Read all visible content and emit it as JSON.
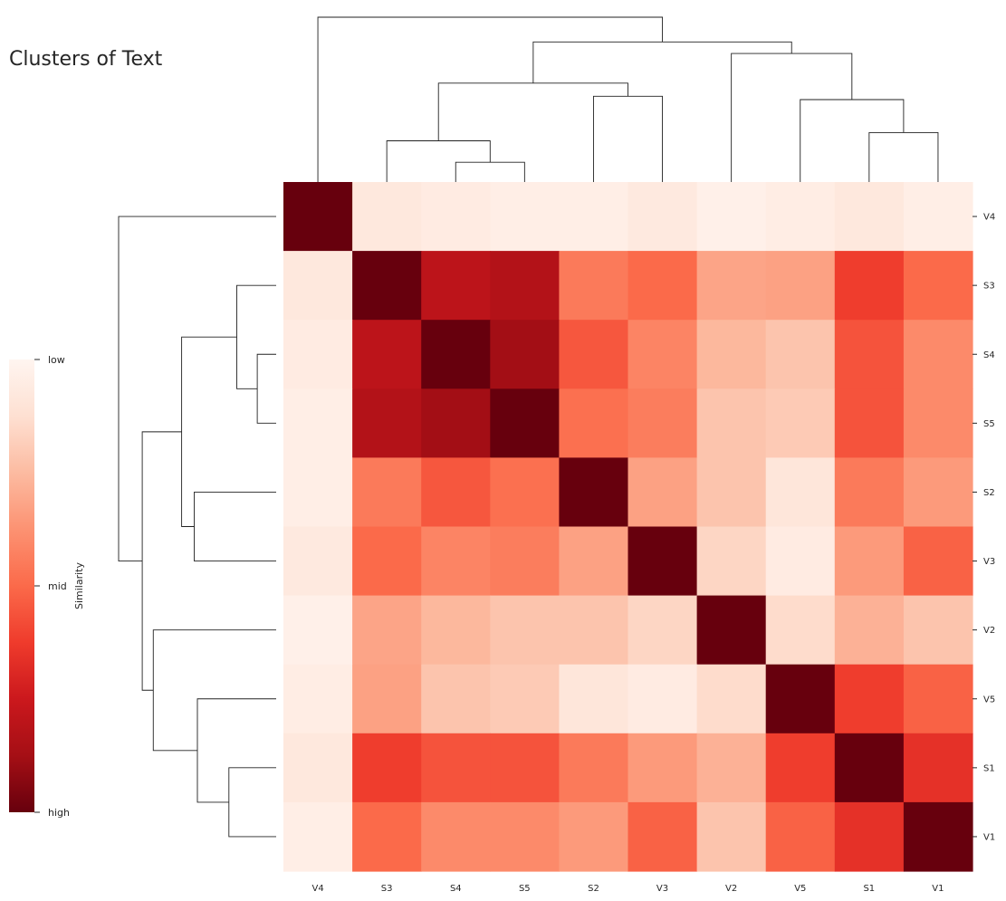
{
  "chart_data": {
    "type": "heatmap",
    "title": "Clusters of Text",
    "labels": [
      "V4",
      "S3",
      "S4",
      "S5",
      "S2",
      "V3",
      "V2",
      "V5",
      "S1",
      "V1"
    ],
    "matrix": [
      [
        1.0,
        0.08,
        0.06,
        0.04,
        0.04,
        0.07,
        0.03,
        0.05,
        0.08,
        0.04
      ],
      [
        0.08,
        1.0,
        0.8,
        0.83,
        0.45,
        0.5,
        0.32,
        0.33,
        0.62,
        0.5
      ],
      [
        0.06,
        0.8,
        1.0,
        0.88,
        0.55,
        0.42,
        0.26,
        0.22,
        0.56,
        0.4
      ],
      [
        0.04,
        0.83,
        0.88,
        1.0,
        0.48,
        0.44,
        0.22,
        0.2,
        0.56,
        0.4
      ],
      [
        0.04,
        0.45,
        0.55,
        0.48,
        1.0,
        0.33,
        0.22,
        0.09,
        0.45,
        0.35
      ],
      [
        0.07,
        0.5,
        0.42,
        0.44,
        0.33,
        1.0,
        0.16,
        0.06,
        0.35,
        0.52
      ],
      [
        0.03,
        0.32,
        0.26,
        0.22,
        0.22,
        0.16,
        1.0,
        0.14,
        0.28,
        0.22
      ],
      [
        0.05,
        0.33,
        0.22,
        0.2,
        0.09,
        0.06,
        0.14,
        1.0,
        0.62,
        0.52
      ],
      [
        0.08,
        0.62,
        0.56,
        0.56,
        0.45,
        0.35,
        0.28,
        0.62,
        1.0,
        0.66
      ],
      [
        0.04,
        0.5,
        0.4,
        0.4,
        0.35,
        0.52,
        0.22,
        0.52,
        0.66,
        1.0
      ]
    ],
    "dendrogram": {
      "merges": [
        {
          "a": 2,
          "b": 3,
          "h": 0.12
        },
        {
          "a": 1,
          "b": "m0",
          "h": 0.25
        },
        {
          "a": 8,
          "b": 9,
          "h": 0.3
        },
        {
          "a": 7,
          "b": "m2",
          "h": 0.5
        },
        {
          "a": 4,
          "b": 5,
          "h": 0.52
        },
        {
          "a": "m1",
          "b": "m4",
          "h": 0.6
        },
        {
          "a": 6,
          "b": "m3",
          "h": 0.78
        },
        {
          "a": "m5",
          "b": "m6",
          "h": 0.85
        },
        {
          "a": 0,
          "b": "m7",
          "h": 1.0
        }
      ]
    },
    "colorbar": {
      "label": "Similarity",
      "ticks": [
        "low",
        "mid",
        "high"
      ],
      "colors": [
        "#fff5f0",
        "#fee0d2",
        "#fcbba1",
        "#fc9272",
        "#fb6a4a",
        "#ef3b2c",
        "#cb181d",
        "#a50f15",
        "#67000d"
      ]
    }
  }
}
